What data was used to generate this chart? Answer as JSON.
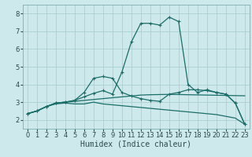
{
  "xlabel": "Humidex (Indice chaleur)",
  "background_color": "#cee9eb",
  "grid_color": "#aacfd2",
  "line_color": "#1a6e6a",
  "xlim": [
    -0.5,
    23.5
  ],
  "ylim": [
    1.5,
    8.5
  ],
  "xticks": [
    0,
    1,
    2,
    3,
    4,
    5,
    6,
    7,
    8,
    9,
    10,
    11,
    12,
    13,
    14,
    15,
    16,
    17,
    18,
    19,
    20,
    21,
    22,
    23
  ],
  "yticks": [
    2,
    3,
    4,
    5,
    6,
    7,
    8
  ],
  "lines": [
    {
      "x": [
        0,
        1,
        2,
        3,
        4,
        5,
        6,
        7,
        8,
        9,
        10,
        11,
        12,
        13,
        14,
        15,
        16,
        17,
        18,
        19,
        20,
        21,
        22,
        23
      ],
      "y": [
        2.35,
        2.5,
        2.75,
        2.9,
        2.95,
        2.9,
        2.9,
        3.0,
        2.9,
        2.85,
        2.8,
        2.75,
        2.7,
        2.65,
        2.6,
        2.55,
        2.5,
        2.45,
        2.4,
        2.35,
        2.3,
        2.2,
        2.1,
        1.75
      ],
      "marker": false
    },
    {
      "x": [
        0,
        1,
        2,
        3,
        4,
        5,
        6,
        7,
        8,
        9,
        10,
        11,
        12,
        13,
        14,
        15,
        16,
        17,
        18,
        19,
        20,
        21,
        22,
        23
      ],
      "y": [
        2.35,
        2.5,
        2.75,
        2.95,
        3.0,
        3.05,
        3.1,
        3.15,
        3.2,
        3.25,
        3.3,
        3.35,
        3.4,
        3.42,
        3.43,
        3.44,
        3.43,
        3.42,
        3.41,
        3.4,
        3.39,
        3.38,
        3.37,
        3.36
      ],
      "marker": false
    },
    {
      "x": [
        0,
        1,
        2,
        3,
        4,
        5,
        6,
        7,
        8,
        9,
        10,
        11,
        12,
        13,
        14,
        15,
        16,
        17,
        18,
        19,
        20,
        21,
        22,
        23
      ],
      "y": [
        2.35,
        2.5,
        2.75,
        2.95,
        3.0,
        3.1,
        3.3,
        3.5,
        3.65,
        3.45,
        4.7,
        6.4,
        7.45,
        7.45,
        7.35,
        7.8,
        7.55,
        4.0,
        3.55,
        3.7,
        3.55,
        3.45,
        2.95,
        1.75
      ],
      "marker": true
    },
    {
      "x": [
        0,
        1,
        2,
        3,
        4,
        5,
        6,
        7,
        8,
        9,
        10,
        11,
        12,
        13,
        14,
        15,
        16,
        17,
        18,
        19,
        20,
        21,
        22,
        23
      ],
      "y": [
        2.35,
        2.5,
        2.75,
        2.95,
        3.0,
        3.1,
        3.55,
        4.35,
        4.45,
        4.35,
        3.55,
        3.35,
        3.2,
        3.1,
        3.05,
        3.45,
        3.55,
        3.7,
        3.7,
        3.65,
        3.55,
        3.45,
        2.95,
        1.75
      ],
      "marker": true
    }
  ],
  "xlabel_fontsize": 7,
  "tick_fontsize": 6,
  "line_width": 0.9,
  "marker_size": 3
}
